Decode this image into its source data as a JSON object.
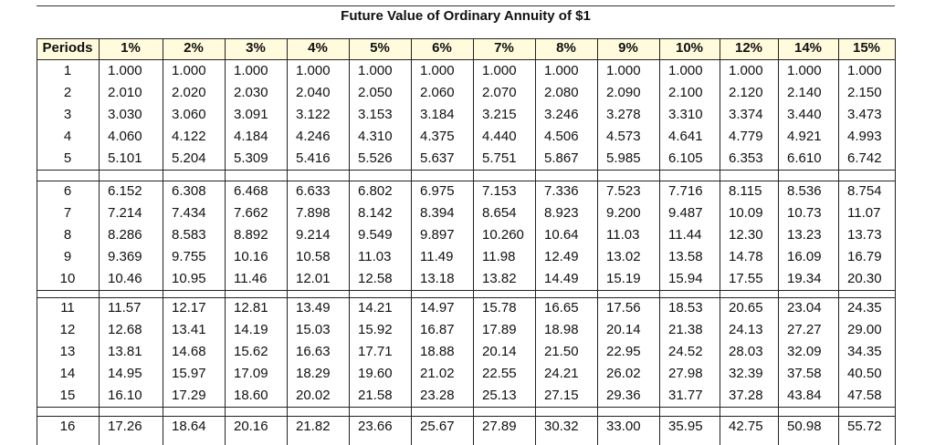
{
  "title": "Future Value of Ordinary Annuity of $1",
  "table": {
    "header": [
      "Periods",
      "1%",
      "2%",
      "3%",
      "4%",
      "5%",
      "6%",
      "7%",
      "8%",
      "9%",
      "10%",
      "12%",
      "14%",
      "15%"
    ],
    "rows": [
      [
        "1",
        "1.000",
        "1.000",
        "1.000",
        "1.000",
        "1.000",
        "1.000",
        "1.000",
        "1.000",
        "1.000",
        "1.000",
        "1.000",
        "1.000",
        "1.000"
      ],
      [
        "2",
        "2.010",
        "2.020",
        "2.030",
        "2.040",
        "2.050",
        "2.060",
        "2.070",
        "2.080",
        "2.090",
        "2.100",
        "2.120",
        "2.140",
        "2.150"
      ],
      [
        "3",
        "3.030",
        "3.060",
        "3.091",
        "3.122",
        "3.153",
        "3.184",
        "3.215",
        "3.246",
        "3.278",
        "3.310",
        "3.374",
        "3.440",
        "3.473"
      ],
      [
        "4",
        "4.060",
        "4.122",
        "4.184",
        "4.246",
        "4.310",
        "4.375",
        "4.440",
        "4.506",
        "4.573",
        "4.641",
        "4.779",
        "4.921",
        "4.993"
      ],
      [
        "5",
        "5.101",
        "5.204",
        "5.309",
        "5.416",
        "5.526",
        "5.637",
        "5.751",
        "5.867",
        "5.985",
        "6.105",
        "6.353",
        "6.610",
        "6.742"
      ],
      [
        "6",
        "6.152",
        "6.308",
        "6.468",
        "6.633",
        "6.802",
        "6.975",
        "7.153",
        "7.336",
        "7.523",
        "7.716",
        "8.115",
        "8.536",
        "8.754"
      ],
      [
        "7",
        "7.214",
        "7.434",
        "7.662",
        "7.898",
        "8.142",
        "8.394",
        "8.654",
        "8.923",
        "9.200",
        "9.487",
        "10.09",
        "10.73",
        "11.07"
      ],
      [
        "8",
        "8.286",
        "8.583",
        "8.892",
        "9.214",
        "9.549",
        "9.897",
        "10.260",
        "10.64",
        "11.03",
        "11.44",
        "12.30",
        "13.23",
        "13.73"
      ],
      [
        "9",
        "9.369",
        "9.755",
        "10.16",
        "10.58",
        "11.03",
        "11.49",
        "11.98",
        "12.49",
        "13.02",
        "13.58",
        "14.78",
        "16.09",
        "16.79"
      ],
      [
        "10",
        "10.46",
        "10.95",
        "11.46",
        "12.01",
        "12.58",
        "13.18",
        "13.82",
        "14.49",
        "15.19",
        "15.94",
        "17.55",
        "19.34",
        "20.30"
      ],
      [
        "11",
        "11.57",
        "12.17",
        "12.81",
        "13.49",
        "14.21",
        "14.97",
        "15.78",
        "16.65",
        "17.56",
        "18.53",
        "20.65",
        "23.04",
        "24.35"
      ],
      [
        "12",
        "12.68",
        "13.41",
        "14.19",
        "15.03",
        "15.92",
        "16.87",
        "17.89",
        "18.98",
        "20.14",
        "21.38",
        "24.13",
        "27.27",
        "29.00"
      ],
      [
        "13",
        "13.81",
        "14.68",
        "15.62",
        "16.63",
        "17.71",
        "18.88",
        "20.14",
        "21.50",
        "22.95",
        "24.52",
        "28.03",
        "32.09",
        "34.35"
      ],
      [
        "14",
        "14.95",
        "15.97",
        "17.09",
        "18.29",
        "19.60",
        "21.02",
        "22.55",
        "24.21",
        "26.02",
        "27.98",
        "32.39",
        "37.58",
        "40.50"
      ],
      [
        "15",
        "16.10",
        "17.29",
        "18.60",
        "20.02",
        "21.58",
        "23.28",
        "25.13",
        "27.15",
        "29.36",
        "31.77",
        "37.28",
        "43.84",
        "47.58"
      ],
      [
        "16",
        "17.26",
        "18.64",
        "20.16",
        "21.82",
        "23.66",
        "25.67",
        "27.89",
        "30.32",
        "33.00",
        "35.95",
        "42.75",
        "50.98",
        "55.72"
      ]
    ]
  }
}
